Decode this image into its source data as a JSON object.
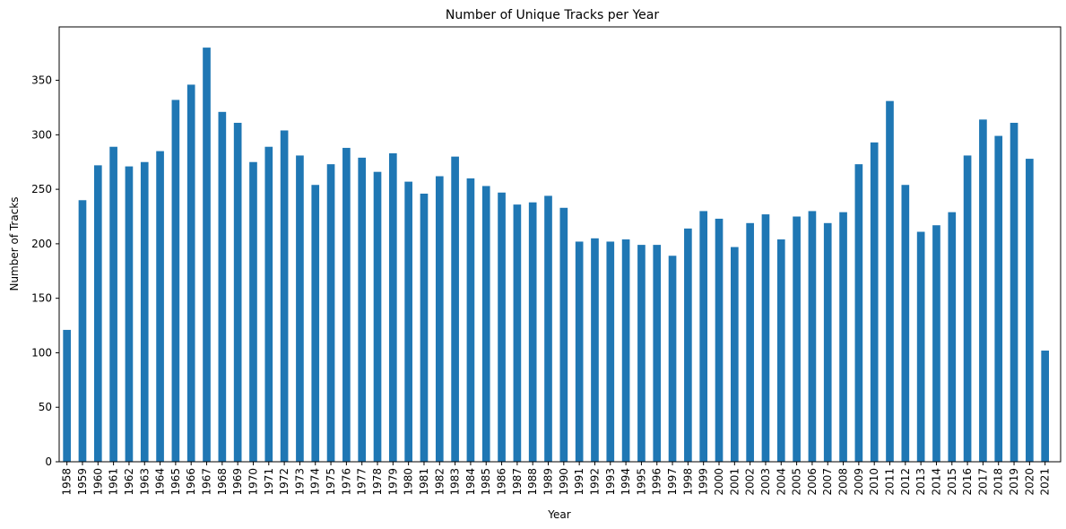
{
  "chart_data": {
    "type": "bar",
    "title": "Number of Unique Tracks per Year",
    "xlabel": "Year",
    "ylabel": "Number of Tracks",
    "ylim": [
      0,
      399
    ],
    "yticks": [
      0,
      50,
      100,
      150,
      200,
      250,
      300,
      350
    ],
    "grid": false,
    "bar_color": "#1f77b4",
    "categories": [
      "1958",
      "1959",
      "1960",
      "1961",
      "1962",
      "1963",
      "1964",
      "1965",
      "1966",
      "1967",
      "1968",
      "1969",
      "1970",
      "1971",
      "1972",
      "1973",
      "1974",
      "1975",
      "1976",
      "1977",
      "1978",
      "1979",
      "1980",
      "1981",
      "1982",
      "1983",
      "1984",
      "1985",
      "1986",
      "1987",
      "1988",
      "1989",
      "1990",
      "1991",
      "1992",
      "1993",
      "1994",
      "1995",
      "1996",
      "1997",
      "1998",
      "1999",
      "2000",
      "2001",
      "2002",
      "2003",
      "2004",
      "2005",
      "2006",
      "2007",
      "2008",
      "2009",
      "2010",
      "2011",
      "2012",
      "2013",
      "2014",
      "2015",
      "2016",
      "2017",
      "2018",
      "2019",
      "2020",
      "2021"
    ],
    "values": [
      121,
      240,
      272,
      289,
      271,
      275,
      285,
      332,
      346,
      380,
      321,
      311,
      275,
      289,
      304,
      281,
      254,
      273,
      288,
      279,
      266,
      283,
      257,
      246,
      262,
      280,
      260,
      253,
      247,
      236,
      238,
      244,
      233,
      202,
      205,
      202,
      204,
      199,
      199,
      189,
      214,
      230,
      223,
      197,
      219,
      227,
      204,
      225,
      230,
      219,
      229,
      273,
      293,
      331,
      254,
      211,
      217,
      229,
      281,
      314,
      299,
      311,
      278,
      102
    ]
  }
}
